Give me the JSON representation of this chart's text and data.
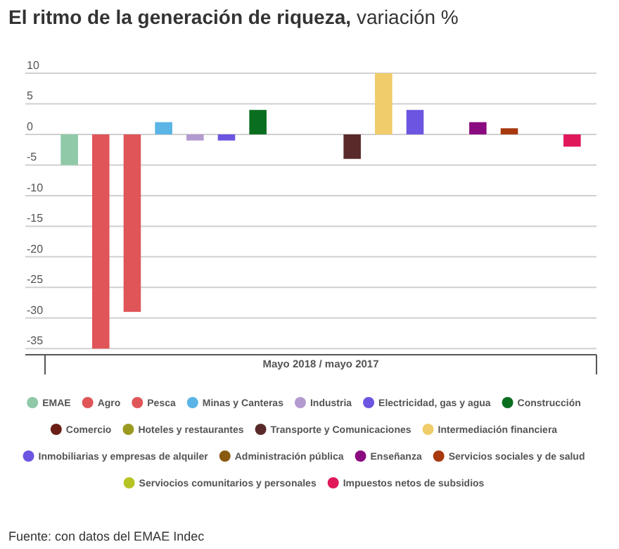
{
  "chart_data": {
    "type": "bar",
    "title": "El ritmo de la generación de riqueza,",
    "subtitle": "variación %",
    "categories": [
      "Mayo 2018 / mayo 2017"
    ],
    "series": [
      {
        "name": "EMAE",
        "color": "#8fc9a8",
        "values": [
          -5
        ]
      },
      {
        "name": "Agro",
        "color": "#e05558",
        "values": [
          -35
        ]
      },
      {
        "name": "Pesca",
        "color": "#e05558",
        "values": [
          -29
        ]
      },
      {
        "name": "Minas y Canteras",
        "color": "#5ab4e5",
        "values": [
          2
        ]
      },
      {
        "name": "Industria",
        "color": "#b39ad0",
        "values": [
          -1
        ]
      },
      {
        "name": "Electricidad, gas y agua",
        "color": "#6c55e0",
        "values": [
          -1
        ]
      },
      {
        "name": "Construcción",
        "color": "#0a6e1f",
        "values": [
          4
        ]
      },
      {
        "name": "Comercio",
        "color": "#6b1f14",
        "values": [
          null
        ]
      },
      {
        "name": "Hoteles y restaurantes",
        "color": "#9a9a20",
        "values": [
          null
        ]
      },
      {
        "name": "Transporte y Comunicaciones",
        "color": "#5a2a2a",
        "values": [
          -4
        ]
      },
      {
        "name": "Intermediación financiera",
        "color": "#f0cc6a",
        "values": [
          10
        ]
      },
      {
        "name": "Inmobiliarias y empresas de alquiler",
        "color": "#6c55e0",
        "values": [
          4
        ]
      },
      {
        "name": "Administración pública",
        "color": "#8a5a10",
        "values": [
          null
        ]
      },
      {
        "name": "Enseñanza",
        "color": "#8a0a80",
        "values": [
          2
        ]
      },
      {
        "name": "Servicios sociales y de salud",
        "color": "#a8380e",
        "values": [
          1
        ]
      },
      {
        "name": "Serviocios comunitarios y personales",
        "color": "#b5c424",
        "values": [
          null
        ]
      },
      {
        "name": "Impuestos netos de subsidios",
        "color": "#e0185a",
        "values": [
          -2
        ]
      }
    ],
    "ylim": [
      -36,
      10
    ],
    "yticks": [
      -35,
      -30,
      -25,
      -20,
      -15,
      -10,
      -5,
      0,
      5,
      10
    ],
    "grid": "y",
    "legend": "bottom",
    "annotations": [
      "Fuente: con datos del EMAE Indec"
    ]
  }
}
